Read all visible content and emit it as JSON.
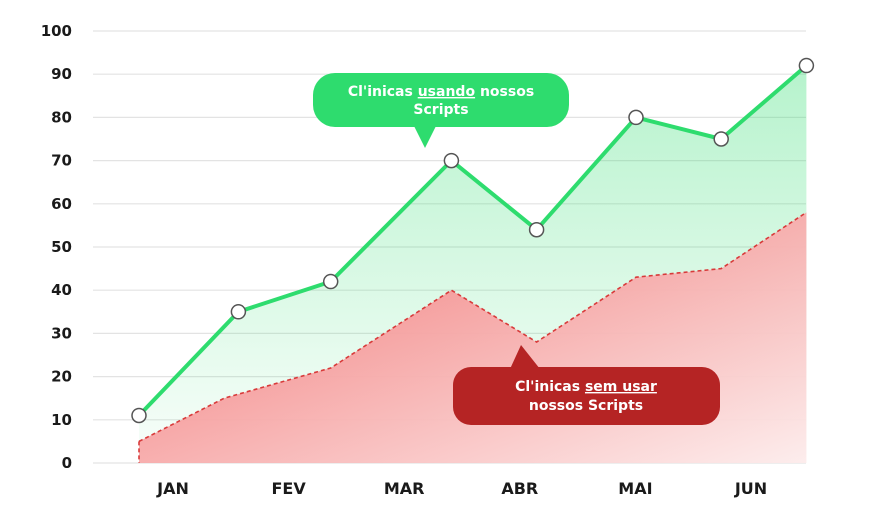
{
  "chart_data": {
    "type": "area",
    "categories": [
      "JAN",
      "FEV",
      "MAR",
      "ABR",
      "MAI",
      "JUN"
    ],
    "ylim": [
      0,
      100
    ],
    "yticks": [
      "0",
      "10",
      "20",
      "30",
      "40",
      "50",
      "60",
      "70",
      "80",
      "90",
      "100"
    ],
    "grid": true,
    "series": [
      {
        "name": "Cl'inicas usando nossos Scripts",
        "style": "solid",
        "markers": true,
        "color": "#2edc6e",
        "x": [
          0.0,
          0.7,
          1.35,
          2.2,
          2.8,
          3.5,
          4.1,
          4.7
        ],
        "values": [
          11,
          35,
          42,
          70,
          54,
          80,
          75,
          92
        ]
      },
      {
        "name": "Cl'inicas sem usar nossos Scripts",
        "style": "dashed",
        "markers": false,
        "color": "#e03a3a",
        "x": [
          0.0,
          0.6,
          1.35,
          2.2,
          2.8,
          3.5,
          4.1,
          4.7
        ],
        "values": [
          5,
          15,
          22,
          40,
          28,
          43,
          45,
          58
        ]
      }
    ],
    "callouts": {
      "green": {
        "line1_prefix": "Cl'inicas ",
        "line1_underlined": "usando",
        "line1_suffix": " nossos",
        "line2": "Scripts",
        "color": "#2edc6e"
      },
      "red": {
        "line1_prefix": "Cl'inicas ",
        "line1_underlined": "sem usar",
        "line2": "nossos Scripts",
        "color": "#b52424"
      }
    }
  }
}
